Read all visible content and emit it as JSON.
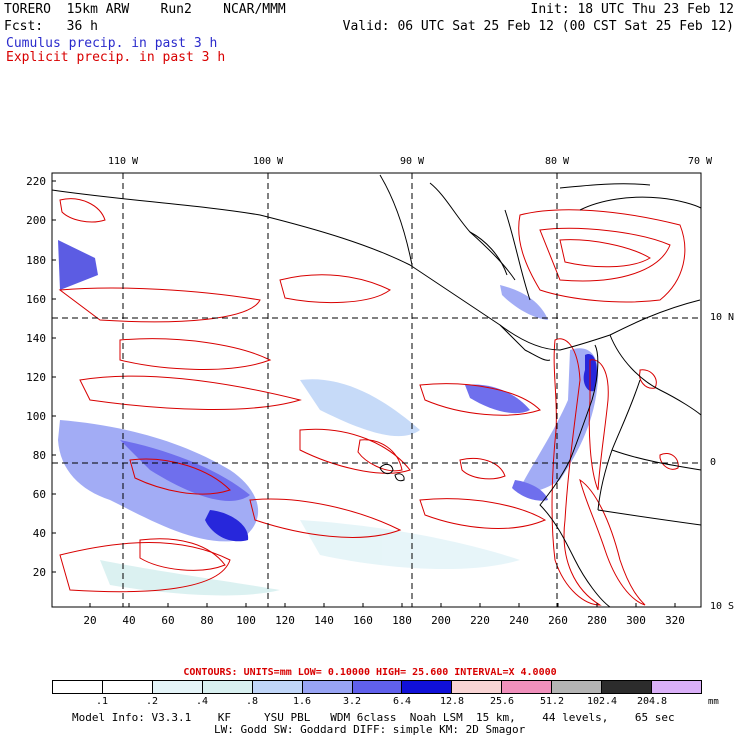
{
  "header": {
    "title_line": "TORERO  15km ARW    Run2    NCAR/MMM",
    "init": "Init: 18 UTC Thu 23 Feb 12",
    "fcst": "Fcst:   36 h",
    "valid": "Valid: 06 UTC Sat 25 Feb 12 (00 CST Sat 25 Feb 12)"
  },
  "legend": {
    "cumulus": "Cumulus precip. in past 3 h",
    "explicit": "Explicit precip. in past 3 h"
  },
  "colors": {
    "cumulus": "#2b2bcc",
    "explicit": "#d80000"
  },
  "map": {
    "lon_labels": [
      "110 W",
      "100 W",
      "90 W",
      "80 W",
      "70 W"
    ],
    "lat_labels": [
      "10 N",
      "0",
      "10 S"
    ],
    "y_ticks": [
      "220",
      "200",
      "180",
      "160",
      "140",
      "120",
      "100",
      "80",
      "60",
      "40",
      "20"
    ],
    "x_ticks": [
      "20",
      "40",
      "60",
      "80",
      "100",
      "120",
      "140",
      "160",
      "180",
      "200",
      "220",
      "240",
      "260",
      "280",
      "300",
      "320"
    ]
  },
  "footer": {
    "contours": "CONTOURS:  UNITS=mm  LOW= 0.10000      HIGH=  25.600      INTERVAL=X  4.0000",
    "scale_labels": [
      ".1",
      ".2",
      ".4",
      ".8",
      "1.6",
      "3.2",
      "6.4",
      "12.8",
      "25.6",
      "51.2",
      "102.4",
      "204.8"
    ],
    "scale_colors": [
      "#ffffff",
      "#ffffff",
      "#e4f4f8",
      "#d8f0f0",
      "#c0d6f8",
      "#98a4f4",
      "#6060ec",
      "#1010d8",
      "#f8d4d4",
      "#f090bc",
      "#b4b4b4",
      "#2c2c2c",
      "#dab0f8"
    ],
    "units": "mm",
    "model_line1": "Model Info: V3.3.1    KF     YSU PBL   WDM 6class  Noah LSM  15 km,    44 levels,    65 sec",
    "model_line2": "LW: Godd SW: Goddard DIFF: simple KM: 2D Smagor"
  }
}
